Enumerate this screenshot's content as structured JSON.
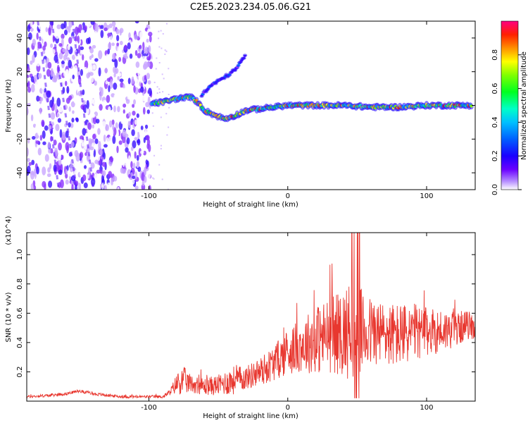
{
  "figure": {
    "title": "C2E5.2023.234.05.06.G21"
  },
  "chart_data": [
    {
      "type": "heatmap",
      "title": "C2E5.2023.234.05.06.G21",
      "xlabel": "Height of straight line (km)",
      "ylabel": "Frequency (Hz)",
      "xlim": [
        -188,
        135
      ],
      "ylim": [
        -50,
        50
      ],
      "xticks": [
        -100,
        0,
        100
      ],
      "yticks": [
        -40,
        -20,
        0,
        20,
        40
      ],
      "colorbar": {
        "label": "Normalized spectral amplitude",
        "range": [
          0,
          1
        ],
        "ticks": [
          0.0,
          0.2,
          0.4,
          0.6,
          0.8
        ]
      },
      "features": [
        {
          "name": "main-trace",
          "points": [
            [
              -98,
              1
            ],
            [
              -90,
              2
            ],
            [
              -80,
              4
            ],
            [
              -70,
              5
            ],
            [
              -65,
              2
            ],
            [
              -60,
              -3
            ],
            [
              -52,
              -6
            ],
            [
              -45,
              -8
            ],
            [
              -38,
              -6
            ],
            [
              -30,
              -3
            ],
            [
              -20,
              -2
            ],
            [
              -10,
              -1
            ],
            [
              0,
              0
            ],
            [
              20,
              0
            ],
            [
              40,
              0
            ],
            [
              60,
              -1
            ],
            [
              80,
              -1
            ],
            [
              100,
              0
            ],
            [
              120,
              0
            ],
            [
              133,
              0
            ]
          ]
        },
        {
          "name": "upper-branch",
          "points": [
            [
              -62,
              6
            ],
            [
              -55,
              12
            ],
            [
              -45,
              17
            ],
            [
              -38,
              21
            ],
            [
              -30,
              30
            ]
          ]
        }
      ]
    },
    {
      "type": "line",
      "title": "",
      "xlabel": "Height of straight line (km)",
      "ylabel": "SNR (10 * v/v)",
      "yscale_label": "(x10^4)",
      "xlim": [
        -188,
        135
      ],
      "ylim": [
        0,
        1.15
      ],
      "xticks": [
        -100,
        0,
        100
      ],
      "yticks": [
        0.2,
        0.4,
        0.6,
        0.8,
        1.0
      ],
      "series": [
        {
          "name": "SNR",
          "color": "#e8372f",
          "x": [
            -188,
            -170,
            -160,
            -150,
            -140,
            -120,
            -100,
            -90,
            -85,
            -80,
            -75,
            -70,
            -60,
            -50,
            -40,
            -30,
            -20,
            -10,
            0,
            10,
            20,
            30,
            40,
            45,
            50,
            55,
            60,
            70,
            80,
            90,
            100,
            110,
            120,
            130,
            135
          ],
          "base": [
            0.03,
            0.04,
            0.05,
            0.07,
            0.05,
            0.03,
            0.03,
            0.03,
            0.06,
            0.12,
            0.14,
            0.12,
            0.1,
            0.11,
            0.14,
            0.16,
            0.2,
            0.26,
            0.34,
            0.38,
            0.42,
            0.45,
            0.47,
            0.48,
            0.48,
            0.47,
            0.47,
            0.46,
            0.45,
            0.47,
            0.47,
            0.48,
            0.49,
            0.52,
            0.5
          ],
          "amp": [
            0.01,
            0.01,
            0.01,
            0.01,
            0.01,
            0.01,
            0.01,
            0.01,
            0.02,
            0.07,
            0.1,
            0.06,
            0.06,
            0.07,
            0.1,
            0.08,
            0.1,
            0.12,
            0.16,
            0.18,
            0.24,
            0.26,
            0.3,
            0.34,
            0.32,
            0.28,
            0.24,
            0.22,
            0.22,
            0.2,
            0.17,
            0.15,
            0.12,
            0.1,
            0.08
          ]
        }
      ]
    }
  ]
}
